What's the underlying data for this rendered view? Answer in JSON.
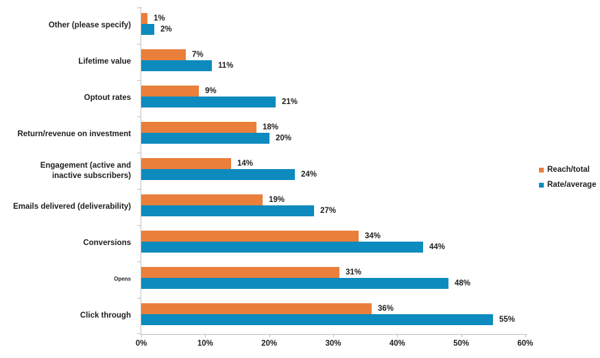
{
  "chart_data": {
    "type": "bar",
    "orientation": "horizontal",
    "title": "",
    "xlabel": "",
    "ylabel": "",
    "categories": [
      "Other (please specify)",
      "Lifetime value",
      "Optout rates",
      "Return/revenue on investment",
      "Engagement (active and\ninactive subscribers)",
      "Emails delivered (deliverability)",
      "Conversions",
      "Opens",
      "Click through"
    ],
    "small_font_categories": [
      "Opens"
    ],
    "series": [
      {
        "name": "Reach/total",
        "color": "#E97F3B",
        "values": [
          1,
          7,
          9,
          18,
          14,
          19,
          34,
          31,
          36
        ],
        "labels": [
          "1%",
          "7%",
          "9%",
          "18%",
          "14%",
          "19%",
          "34%",
          "31%",
          "36%"
        ]
      },
      {
        "name": "Rate/average",
        "color": "#0E8BBE",
        "values": [
          2,
          11,
          21,
          20,
          24,
          27,
          44,
          48,
          55
        ],
        "labels": [
          "2%",
          "11%",
          "21%",
          "20%",
          "24%",
          "27%",
          "44%",
          "48%",
          "55%"
        ]
      }
    ],
    "xlim": [
      0,
      60
    ],
    "x_ticks": [
      {
        "value": 0,
        "label": "0%"
      },
      {
        "value": 10,
        "label": "10%"
      },
      {
        "value": 20,
        "label": "20%"
      },
      {
        "value": 30,
        "label": "30%"
      },
      {
        "value": 40,
        "label": "40%"
      },
      {
        "value": 50,
        "label": "50%"
      },
      {
        "value": 60,
        "label": "60%"
      }
    ],
    "grid": false,
    "legend_position": "right",
    "axis_color": "#C0C0C0",
    "text_color": "#1F1F1F",
    "background_color": "#FFFFFF"
  }
}
